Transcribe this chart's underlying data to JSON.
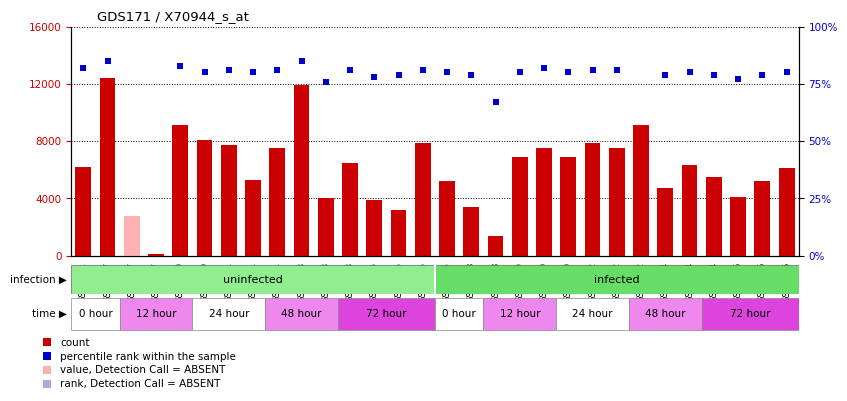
{
  "title": "GDS171 / X70944_s_at",
  "samples": [
    "GSM2591",
    "GSM2607",
    "GSM2617",
    "GSM2597",
    "GSM2609",
    "GSM2619",
    "GSM2601",
    "GSM2611",
    "GSM2621",
    "GSM2603",
    "GSM2613",
    "GSM2623",
    "GSM2605",
    "GSM2615",
    "GSM2625",
    "GSM2595",
    "GSM2608",
    "GSM2618",
    "GSM2599",
    "GSM2610",
    "GSM2620",
    "GSM2602",
    "GSM2612",
    "GSM2622",
    "GSM2604",
    "GSM2614",
    "GSM2624",
    "GSM2606",
    "GSM2616",
    "GSM2626"
  ],
  "counts": [
    6200,
    12400,
    2800,
    130,
    9100,
    8100,
    7700,
    5300,
    7500,
    11900,
    4000,
    6500,
    3900,
    3200,
    7900,
    5200,
    3400,
    1400,
    6900,
    7500,
    6900,
    7900,
    7500,
    9100,
    4700,
    6300,
    5500,
    4100,
    5200,
    6100
  ],
  "ranks_pct": [
    82,
    85,
    null,
    null,
    83,
    80,
    81,
    80,
    81,
    85,
    76,
    81,
    78,
    79,
    81,
    80,
    79,
    67,
    80,
    82,
    80,
    81,
    81,
    null,
    79,
    80,
    79,
    77,
    79,
    80
  ],
  "absent_count_idx": [
    2
  ],
  "absent_rank_idx": [
    3
  ],
  "bar_color": "#CC0000",
  "absent_bar_color": "#FFB0B0",
  "rank_color": "#0000CC",
  "absent_rank_color": "#AAAADD",
  "ylim_left": [
    0,
    16000
  ],
  "ylim_right": [
    0,
    100
  ],
  "yticks_left": [
    0,
    4000,
    8000,
    12000,
    16000
  ],
  "yticks_right": [
    0,
    25,
    50,
    75,
    100
  ],
  "infection_groups": [
    {
      "label": "uninfected",
      "start": 0,
      "end": 15,
      "color": "#90EE90"
    },
    {
      "label": "infected",
      "start": 15,
      "end": 30,
      "color": "#66DD66"
    }
  ],
  "time_groups": [
    {
      "label": "0 hour",
      "start": 0,
      "end": 2,
      "color": "#FFFFFF"
    },
    {
      "label": "12 hour",
      "start": 2,
      "end": 5,
      "color": "#EE88EE"
    },
    {
      "label": "24 hour",
      "start": 5,
      "end": 8,
      "color": "#FFFFFF"
    },
    {
      "label": "48 hour",
      "start": 8,
      "end": 11,
      "color": "#EE88EE"
    },
    {
      "label": "72 hour",
      "start": 11,
      "end": 15,
      "color": "#DD44DD"
    },
    {
      "label": "0 hour",
      "start": 15,
      "end": 17,
      "color": "#FFFFFF"
    },
    {
      "label": "12 hour",
      "start": 17,
      "end": 20,
      "color": "#EE88EE"
    },
    {
      "label": "24 hour",
      "start": 20,
      "end": 23,
      "color": "#FFFFFF"
    },
    {
      "label": "48 hour",
      "start": 23,
      "end": 26,
      "color": "#EE88EE"
    },
    {
      "label": "72 hour",
      "start": 26,
      "end": 30,
      "color": "#DD44DD"
    }
  ],
  "legend_items": [
    {
      "color": "#CC0000",
      "label": "count"
    },
    {
      "color": "#0000CC",
      "label": "percentile rank within the sample"
    },
    {
      "color": "#FFB0B0",
      "label": "value, Detection Call = ABSENT"
    },
    {
      "color": "#AAAADD",
      "label": "rank, Detection Call = ABSENT"
    }
  ]
}
